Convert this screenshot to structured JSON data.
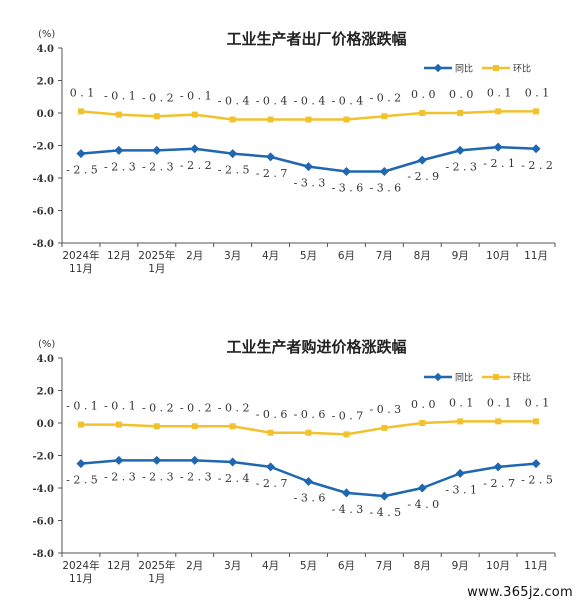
{
  "watermark": "www.365jz.com",
  "colors": {
    "yoy": "#1f67b0",
    "mom": "#f2c12e",
    "axis": "#555555",
    "text": "#333333"
  },
  "chart_data": [
    {
      "type": "line",
      "title": "工业生产者出厂价格涨跌幅",
      "unit": "(%)",
      "ylim": [
        -8.0,
        4.0
      ],
      "yticks": [
        "4.0",
        "2.0",
        "0.0",
        "-2.0",
        "-4.0",
        "-6.0",
        "-8.0"
      ],
      "categories": [
        [
          "2024年",
          "11月"
        ],
        [
          "12月"
        ],
        [
          "2025年",
          "1月"
        ],
        [
          "2月"
        ],
        [
          "3月"
        ],
        [
          "4月"
        ],
        [
          "5月"
        ],
        [
          "6月"
        ],
        [
          "7月"
        ],
        [
          "8月"
        ],
        [
          "9月"
        ],
        [
          "10月"
        ],
        [
          "11月"
        ]
      ],
      "legend": "top-right",
      "series": [
        {
          "name": "同比",
          "color": "#1f67b0",
          "values": [
            -2.5,
            -2.3,
            -2.3,
            -2.2,
            -2.5,
            -2.7,
            -3.3,
            -3.6,
            -3.6,
            -2.9,
            -2.3,
            -2.1,
            -2.2
          ],
          "labels": [
            "-2.5",
            "-2.3",
            "-2.3",
            "-2.2",
            "-2.5",
            "-2.7",
            "-3.3",
            "-3.6",
            "-3.6",
            "-2.9",
            "-2.3",
            "-2.1",
            "-2.2"
          ]
        },
        {
          "name": "环比",
          "color": "#f2c12e",
          "values": [
            0.1,
            -0.1,
            -0.2,
            -0.1,
            -0.4,
            -0.4,
            -0.4,
            -0.4,
            -0.2,
            0.0,
            0.0,
            0.1,
            0.1
          ],
          "labels": [
            "0.1",
            "-0.1",
            "-0.2",
            "-0.1",
            "-0.4",
            "-0.4",
            "-0.4",
            "-0.4",
            "-0.2",
            "0.0",
            "0.0",
            "0.1",
            "0.1"
          ]
        }
      ]
    },
    {
      "type": "line",
      "title": "工业生产者购进价格涨跌幅",
      "unit": "(%)",
      "ylim": [
        -8.0,
        4.0
      ],
      "yticks": [
        "4.0",
        "2.0",
        "0.0",
        "-2.0",
        "-4.0",
        "-6.0",
        "-8.0"
      ],
      "categories": [
        [
          "2024年",
          "11月"
        ],
        [
          "12月"
        ],
        [
          "2025年",
          "1月"
        ],
        [
          "2月"
        ],
        [
          "3月"
        ],
        [
          "4月"
        ],
        [
          "5月"
        ],
        [
          "6月"
        ],
        [
          "7月"
        ],
        [
          "8月"
        ],
        [
          "9月"
        ],
        [
          "10月"
        ],
        [
          "11月"
        ]
      ],
      "legend": "top-right",
      "series": [
        {
          "name": "同比",
          "color": "#1f67b0",
          "values": [
            -2.5,
            -2.3,
            -2.3,
            -2.3,
            -2.4,
            -2.7,
            -3.6,
            -4.3,
            -4.5,
            -4.0,
            -3.1,
            -2.7,
            -2.5
          ],
          "labels": [
            "-2.5",
            "-2.3",
            "-2.3",
            "-2.3",
            "-2.4",
            "-2.7",
            "-3.6",
            "-4.3",
            "-4.5",
            "-4.0",
            "-3.1",
            "-2.7",
            "-2.5"
          ]
        },
        {
          "name": "环比",
          "color": "#f2c12e",
          "values": [
            -0.1,
            -0.1,
            -0.2,
            -0.2,
            -0.2,
            -0.6,
            -0.6,
            -0.7,
            -0.3,
            0.0,
            0.1,
            0.1,
            0.1
          ],
          "labels": [
            "-0.1",
            "-0.1",
            "-0.2",
            "-0.2",
            "-0.2",
            "-0.6",
            "-0.6",
            "-0.7",
            "-0.3",
            "0.0",
            "0.1",
            "0.1",
            "0.1"
          ]
        }
      ]
    }
  ]
}
